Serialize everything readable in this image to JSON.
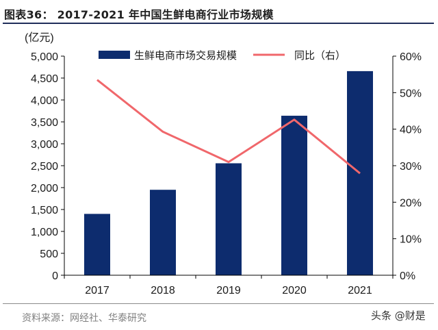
{
  "figure_title": "图表36： 2017-2021 年中国生鲜电商行业市场规模",
  "source_note": "资料来源：网经社、华泰研究",
  "watermark": "头条 @财是",
  "colors": {
    "bar": "#0d2c6e",
    "line": "#f0676b",
    "axis": "#000000",
    "text": "#1a1a1a"
  },
  "chart_data": {
    "type": "bar",
    "categories": [
      "2017",
      "2018",
      "2019",
      "2020",
      "2021"
    ],
    "series": [
      {
        "name": "生鲜电商市场交易规模",
        "type": "bar",
        "axis": "left",
        "values": [
          1400,
          1950,
          2555,
          3640,
          4658
        ]
      },
      {
        "name": "同比（右）",
        "type": "line",
        "axis": "right",
        "values": [
          53.5,
          39.3,
          31.0,
          42.6,
          27.9
        ]
      }
    ],
    "y_left": {
      "unit_label": "(亿元)",
      "min": 0,
      "max": 5000,
      "step": 500,
      "ticks": [
        "0",
        "500",
        "1,000",
        "1,500",
        "2,000",
        "2,500",
        "3,000",
        "3,500",
        "4,000",
        "4,500",
        "5,000"
      ]
    },
    "y_right": {
      "min": 0,
      "max": 60,
      "step": 10,
      "ticks": [
        "0%",
        "10%",
        "20%",
        "30%",
        "40%",
        "50%",
        "60%"
      ]
    },
    "legend_position": "top",
    "grid": false
  }
}
